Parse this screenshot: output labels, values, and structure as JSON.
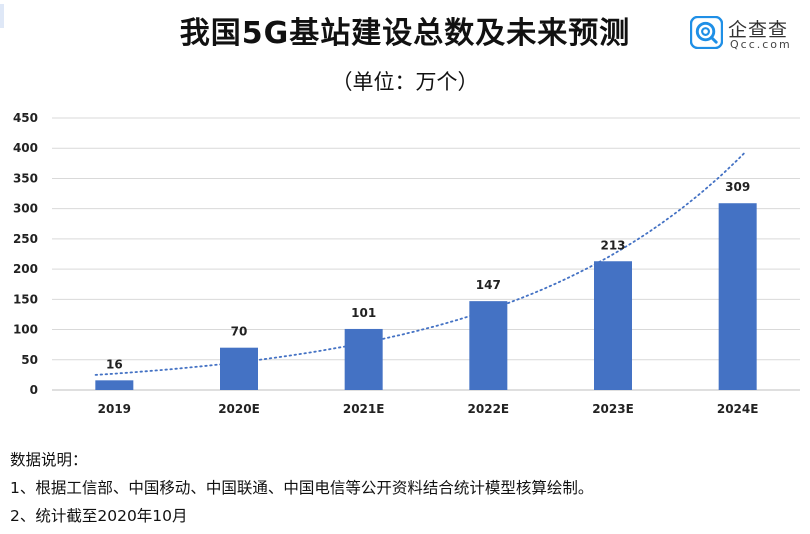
{
  "header": {
    "title": "我国5G基站建设总数及未来预测",
    "subtitle": "（单位：万个）"
  },
  "brand": {
    "name_cn": "企查查",
    "name_en": "Qcc.com",
    "color": "#1f8fe6",
    "icon": "qcc-logo-icon"
  },
  "chart_data": {
    "type": "bar",
    "categories": [
      "2019",
      "2020E",
      "2021E",
      "2022E",
      "2023E",
      "2024E"
    ],
    "values": [
      16,
      70,
      101,
      147,
      213,
      309
    ],
    "data_labels": [
      "16",
      "70",
      "101",
      "147",
      "213",
      "309"
    ],
    "ylim": [
      0,
      450
    ],
    "yticks": [
      "0",
      "50",
      "100",
      "150",
      "200",
      "250",
      "300",
      "350",
      "400",
      "450"
    ],
    "grid": true,
    "bar_color": "#4472c4",
    "trendline": {
      "type": "exponential",
      "style": "dotted",
      "color": "#4472c4"
    }
  },
  "notes": {
    "heading": "数据说明：",
    "items": [
      "1、根据工信部、中国移动、中国联通、中国电信等公开资料结合统计模型核算绘制。",
      "2、统计截至2020年10月"
    ]
  }
}
